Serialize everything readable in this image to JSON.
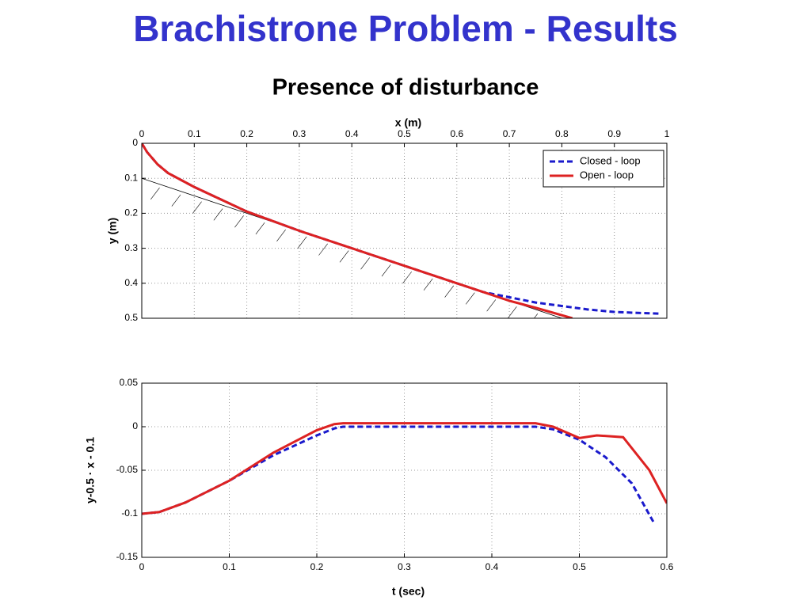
{
  "title": "Brachistrone Problem - Results",
  "subtitle": "Presence of disturbance",
  "chart_data": [
    {
      "type": "line",
      "x_label": "x (m)",
      "y_label": "y (m)",
      "x_axis_position": "top",
      "y_inverted": true,
      "xlim": [
        0,
        1
      ],
      "xticks": [
        0,
        0.1,
        0.2,
        0.3,
        0.4,
        0.5,
        0.6,
        0.7,
        0.8,
        0.9,
        1
      ],
      "ylim": [
        0,
        0.5
      ],
      "yticks": [
        0,
        0.1,
        0.2,
        0.3,
        0.4,
        0.5
      ],
      "grid": true,
      "legend": "upper right",
      "constraint": {
        "color": "#000000",
        "x": [
          0,
          0.8
        ],
        "values": [
          0.1,
          0.5
        ]
      },
      "series": [
        {
          "name": "Closed - loop",
          "color": "#1a1acc",
          "dash": true,
          "x": [
            0,
            0.01,
            0.03,
            0.05,
            0.1,
            0.15,
            0.2,
            0.3,
            0.4,
            0.5,
            0.6,
            0.65,
            0.7,
            0.75,
            0.8,
            0.85,
            0.9,
            0.95,
            0.99
          ],
          "values": [
            0,
            0.025,
            0.06,
            0.085,
            0.125,
            0.16,
            0.195,
            0.25,
            0.3,
            0.35,
            0.4,
            0.425,
            0.44,
            0.455,
            0.465,
            0.475,
            0.482,
            0.485,
            0.487
          ]
        },
        {
          "name": "Open - loop",
          "color": "#dd2222",
          "dash": false,
          "x": [
            0,
            0.01,
            0.03,
            0.05,
            0.1,
            0.15,
            0.2,
            0.3,
            0.4,
            0.5,
            0.6,
            0.65,
            0.7,
            0.75,
            0.82
          ],
          "values": [
            0,
            0.025,
            0.06,
            0.085,
            0.125,
            0.16,
            0.195,
            0.25,
            0.3,
            0.35,
            0.4,
            0.425,
            0.45,
            0.47,
            0.5
          ]
        }
      ]
    },
    {
      "type": "line",
      "x_label": "t (sec)",
      "y_label": "y-0.5 · x - 0.1",
      "x_axis_position": "bottom",
      "y_inverted": false,
      "xlim": [
        0,
        0.6
      ],
      "xticks": [
        0,
        0.1,
        0.2,
        0.3,
        0.4,
        0.5,
        0.6
      ],
      "ylim": [
        -0.15,
        0.05
      ],
      "yticks": [
        -0.15,
        -0.1,
        -0.05,
        0,
        0.05
      ],
      "grid": true,
      "series": [
        {
          "color": "#1a1acc",
          "dash": true,
          "x": [
            0,
            0.02,
            0.05,
            0.1,
            0.15,
            0.2,
            0.22,
            0.23,
            0.45,
            0.47,
            0.5,
            0.53,
            0.56,
            0.585
          ],
          "values": [
            -0.1,
            -0.098,
            -0.087,
            -0.062,
            -0.033,
            -0.01,
            -0.002,
            0,
            0,
            -0.003,
            -0.015,
            -0.035,
            -0.065,
            -0.11
          ]
        },
        {
          "color": "#dd2222",
          "dash": false,
          "x": [
            0,
            0.02,
            0.05,
            0.1,
            0.15,
            0.2,
            0.22,
            0.23,
            0.45,
            0.47,
            0.5,
            0.52,
            0.55,
            0.58,
            0.6
          ],
          "values": [
            -0.1,
            -0.098,
            -0.087,
            -0.062,
            -0.03,
            -0.004,
            0.003,
            0.004,
            0.004,
            0,
            -0.013,
            -0.01,
            -0.012,
            -0.05,
            -0.088
          ]
        }
      ]
    }
  ]
}
